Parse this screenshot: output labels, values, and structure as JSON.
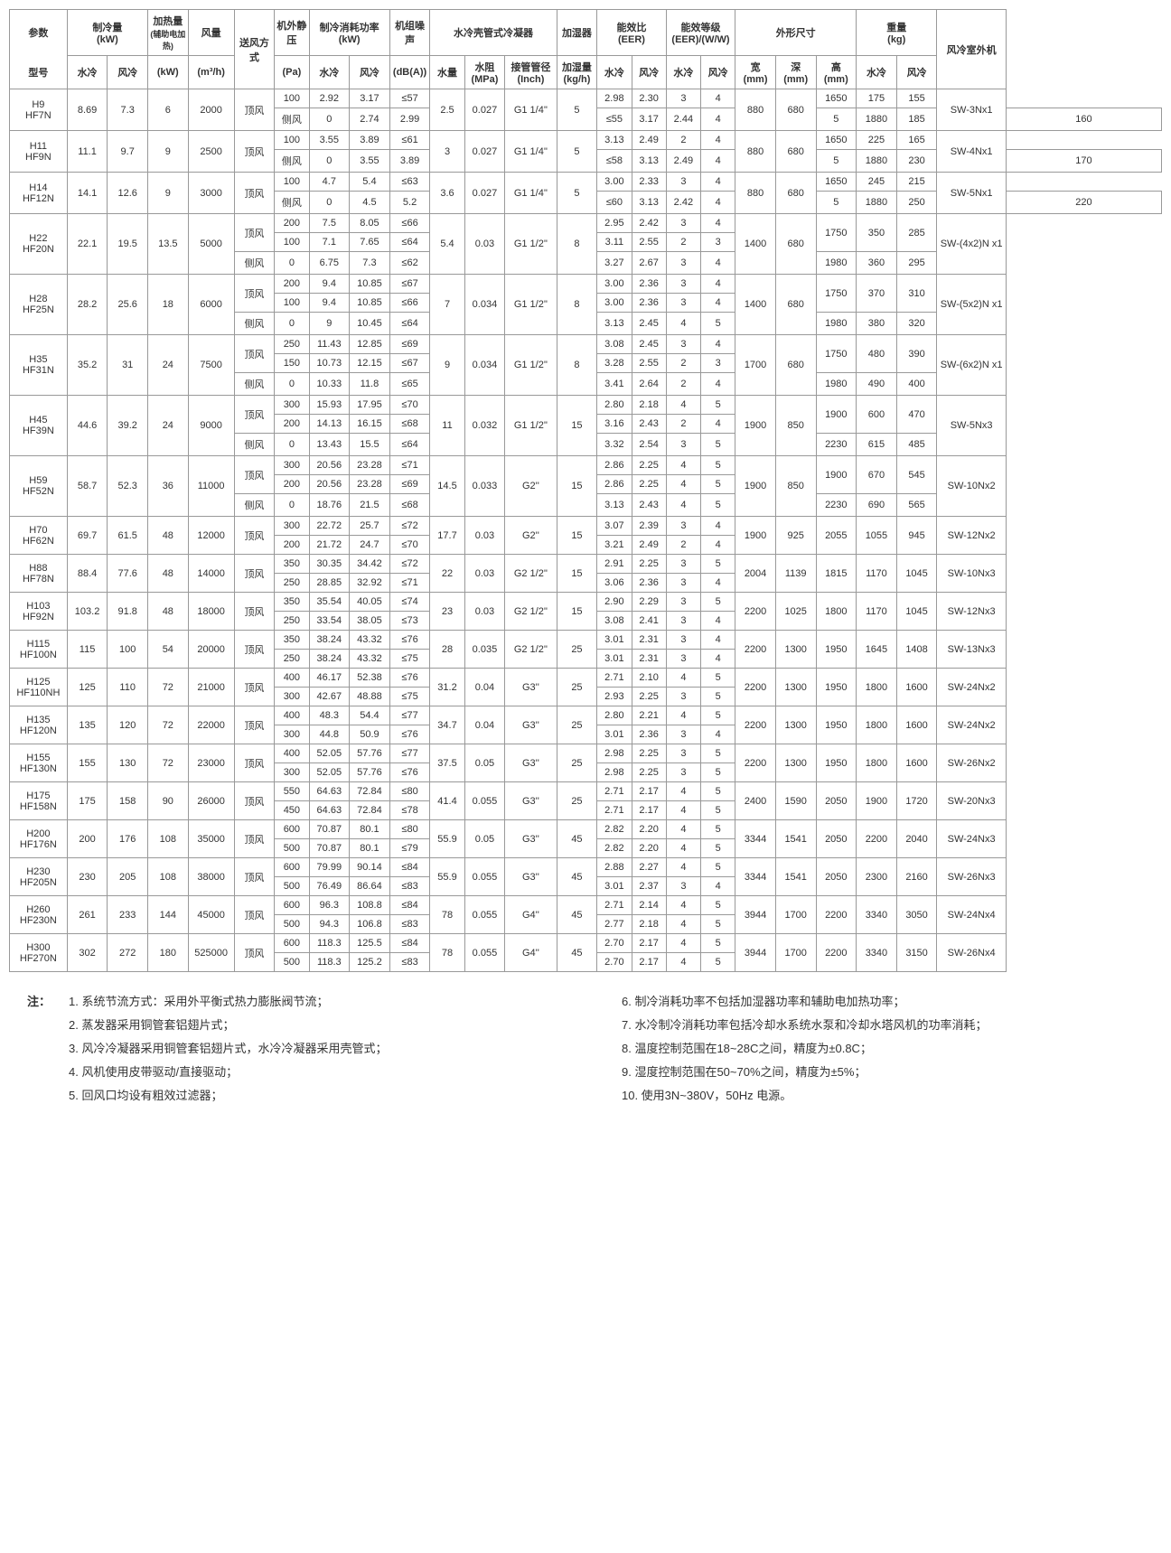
{
  "headers": {
    "param": "参数",
    "model": "型号",
    "cool_cap": "制冷量",
    "cool_unit": "(kW)",
    "heat_cap": "加热量",
    "heat_sub": "(辅助电加热)",
    "heat_unit": "(kW)",
    "airflow": "风量",
    "airflow_unit": "(m³/h)",
    "supply": "送风方式",
    "esp": "机外静压",
    "esp_unit": "(Pa)",
    "power": "制冷消耗功率",
    "power_unit": "(kW)",
    "noise": "机组噪声",
    "noise_unit": "(dB(A))",
    "condenser": "水冷壳管式冷凝器",
    "humid": "加湿器",
    "eer": "能效比",
    "eer_sub": "(EER)",
    "eer_grade": "能效等级",
    "eer_grade_sub": "(EER)/(W/W)",
    "dims": "外形尺寸",
    "weight": "重量",
    "weight_unit": "(kg)",
    "outdoor": "风冷室外机",
    "wc": "水冷",
    "ac": "风冷",
    "water_flow": "水量",
    "pressure": "水阻",
    "pressure_u": "(MPa)",
    "pipe": "接管管径",
    "pipe_u": "(Inch)",
    "humid_rate": "加湿量",
    "humid_u": "(kg/h)",
    "w": "宽",
    "d": "深",
    "h": "高",
    "mm": "(mm)"
  },
  "supplyModes": {
    "top": "顶风",
    "side": "侧风"
  },
  "rows": [
    {
      "model": "H9\nHF7N",
      "cw": "8.69",
      "ca": "7.3",
      "heat": "6",
      "af": "2000",
      "sub": [
        {
          "s": "top",
          "esp": "100",
          "pw": "2.92",
          "pa": "3.17",
          "n": "≤57",
          "ew": "2.98",
          "ea": "2.30",
          "gw": "3",
          "ga": "4",
          "ht": "1650",
          "ww": "175",
          "wa": "155"
        },
        {
          "s": "side",
          "esp": "0",
          "pw": "2.74",
          "pa": "2.99",
          "n": "≤55",
          "ew": "3.17",
          "ea": "2.44",
          "gw": "4",
          "ga": "5",
          "ht": "1880",
          "ww": "185",
          "wa": "160"
        }
      ],
      "wf": "2.5",
      "wp": "0.027",
      "pipe": "G1 1/4''",
      "hr": "5",
      "dw": "880",
      "dd": "680",
      "od": "SW-3Nx1"
    },
    {
      "model": "H11\nHF9N",
      "cw": "11.1",
      "ca": "9.7",
      "heat": "9",
      "af": "2500",
      "sub": [
        {
          "s": "top",
          "esp": "100",
          "pw": "3.55",
          "pa": "3.89",
          "n": "≤61",
          "ew": "3.13",
          "ea": "2.49",
          "gw": "2",
          "ga": "4",
          "ht": "1650",
          "ww": "225",
          "wa": "165"
        },
        {
          "s": "side",
          "esp": "0",
          "pw": "3.55",
          "pa": "3.89",
          "n": "≤58",
          "ew": "3.13",
          "ea": "2.49",
          "gw": "4",
          "ga": "5",
          "ht": "1880",
          "ww": "230",
          "wa": "170"
        }
      ],
      "wf": "3",
      "wp": "0.027",
      "pipe": "G1 1/4''",
      "hr": "5",
      "dw": "880",
      "dd": "680",
      "od": "SW-4Nx1"
    },
    {
      "model": "H14\nHF12N",
      "cw": "14.1",
      "ca": "12.6",
      "heat": "9",
      "af": "3000",
      "sub": [
        {
          "s": "top",
          "esp": "100",
          "pw": "4.7",
          "pa": "5.4",
          "n": "≤63",
          "ew": "3.00",
          "ea": "2.33",
          "gw": "3",
          "ga": "4",
          "ht": "1650",
          "ww": "245",
          "wa": "215"
        },
        {
          "s": "side",
          "esp": "0",
          "pw": "4.5",
          "pa": "5.2",
          "n": "≤60",
          "ew": "3.13",
          "ea": "2.42",
          "gw": "4",
          "ga": "5",
          "ht": "1880",
          "ww": "250",
          "wa": "220"
        }
      ],
      "wf": "3.6",
      "wp": "0.027",
      "pipe": "G1 1/4''",
      "hr": "5",
      "dw": "880",
      "dd": "680",
      "od": "SW-5Nx1"
    },
    {
      "model": "H22\nHF20N",
      "cw": "22.1",
      "ca": "19.5",
      "heat": "13.5",
      "af": "5000",
      "sub": [
        {
          "s": "top",
          "esp": "200",
          "pw": "7.5",
          "pa": "8.05",
          "n": "≤66",
          "ew": "2.95",
          "ea": "2.42",
          "gw": "3",
          "ga": "4",
          "ht": "1750",
          "ww": "350",
          "wa": "285"
        },
        {
          "s": "top2",
          "esp": "100",
          "pw": "7.1",
          "pa": "7.65",
          "n": "≤64",
          "ew": "3.11",
          "ea": "2.55",
          "gw": "2",
          "ga": "3"
        },
        {
          "s": "side",
          "esp": "0",
          "pw": "6.75",
          "pa": "7.3",
          "n": "≤62",
          "ew": "3.27",
          "ea": "2.67",
          "gw": "3",
          "ga": "4",
          "ht": "1980",
          "ww": "360",
          "wa": "295"
        }
      ],
      "wf": "5.4",
      "wp": "0.03",
      "pipe": "G1 1/2''",
      "hr": "8",
      "dw": "1400",
      "dd": "680",
      "od": "SW-(4x2)N x1",
      "topSpan": 2
    },
    {
      "model": "H28\nHF25N",
      "cw": "28.2",
      "ca": "25.6",
      "heat": "18",
      "af": "6000",
      "sub": [
        {
          "s": "top",
          "esp": "200",
          "pw": "9.4",
          "pa": "10.85",
          "n": "≤67",
          "ew": "3.00",
          "ea": "2.36",
          "gw": "3",
          "ga": "4",
          "ht": "1750",
          "ww": "370",
          "wa": "310"
        },
        {
          "s": "top2",
          "esp": "100",
          "pw": "9.4",
          "pa": "10.85",
          "n": "≤66",
          "ew": "3.00",
          "ea": "2.36",
          "gw": "3",
          "ga": "4"
        },
        {
          "s": "side",
          "esp": "0",
          "pw": "9",
          "pa": "10.45",
          "n": "≤64",
          "ew": "3.13",
          "ea": "2.45",
          "gw": "4",
          "ga": "5",
          "ht": "1980",
          "ww": "380",
          "wa": "320"
        }
      ],
      "wf": "7",
      "wp": "0.034",
      "pipe": "G1 1/2''",
      "hr": "8",
      "dw": "1400",
      "dd": "680",
      "od": "SW-(5x2)N x1",
      "topSpan": 2
    },
    {
      "model": "H35\nHF31N",
      "cw": "35.2",
      "ca": "31",
      "heat": "24",
      "af": "7500",
      "sub": [
        {
          "s": "top",
          "esp": "250",
          "pw": "11.43",
          "pa": "12.85",
          "n": "≤69",
          "ew": "3.08",
          "ea": "2.45",
          "gw": "3",
          "ga": "4",
          "ht": "1750",
          "ww": "480",
          "wa": "390"
        },
        {
          "s": "top2",
          "esp": "150",
          "pw": "10.73",
          "pa": "12.15",
          "n": "≤67",
          "ew": "3.28",
          "ea": "2.55",
          "gw": "2",
          "ga": "3"
        },
        {
          "s": "side",
          "esp": "0",
          "pw": "10.33",
          "pa": "11.8",
          "n": "≤65",
          "ew": "3.41",
          "ea": "2.64",
          "gw": "2",
          "ga": "4",
          "ht": "1980",
          "ww": "490",
          "wa": "400"
        }
      ],
      "wf": "9",
      "wp": "0.034",
      "pipe": "G1 1/2''",
      "hr": "8",
      "dw": "1700",
      "dd": "680",
      "od": "SW-(6x2)N x1",
      "topSpan": 2
    },
    {
      "model": "H45\nHF39N",
      "cw": "44.6",
      "ca": "39.2",
      "heat": "24",
      "af": "9000",
      "sub": [
        {
          "s": "top",
          "esp": "300",
          "pw": "15.93",
          "pa": "17.95",
          "n": "≤70",
          "ew": "2.80",
          "ea": "2.18",
          "gw": "4",
          "ga": "5",
          "ht": "1900",
          "ww": "600",
          "wa": "470"
        },
        {
          "s": "top2",
          "esp": "200",
          "pw": "14.13",
          "pa": "16.15",
          "n": "≤68",
          "ew": "3.16",
          "ea": "2.43",
          "gw": "2",
          "ga": "4"
        },
        {
          "s": "side",
          "esp": "0",
          "pw": "13.43",
          "pa": "15.5",
          "n": "≤64",
          "ew": "3.32",
          "ea": "2.54",
          "gw": "3",
          "ga": "5",
          "ht": "2230",
          "ww": "615",
          "wa": "485"
        }
      ],
      "wf": "11",
      "wp": "0.032",
      "pipe": "G1 1/2''",
      "hr": "15",
      "dw": "1900",
      "dd": "850",
      "od": "SW-5Nx3",
      "topSpan": 2
    },
    {
      "model": "H59\nHF52N",
      "cw": "58.7",
      "ca": "52.3",
      "heat": "36",
      "af": "11000",
      "sub": [
        {
          "s": "top",
          "esp": "300",
          "pw": "20.56",
          "pa": "23.28",
          "n": "≤71",
          "ew": "2.86",
          "ea": "2.25",
          "gw": "4",
          "ga": "5",
          "ht": "1900",
          "ww": "670",
          "wa": "545"
        },
        {
          "s": "top2",
          "esp": "200",
          "pw": "20.56",
          "pa": "23.28",
          "n": "≤69",
          "ew": "2.86",
          "ea": "2.25",
          "gw": "4",
          "ga": "5"
        },
        {
          "s": "side",
          "esp": "0",
          "pw": "18.76",
          "pa": "21.5",
          "n": "≤68",
          "ew": "3.13",
          "ea": "2.43",
          "gw": "4",
          "ga": "5",
          "ht": "2230",
          "ww": "690",
          "wa": "565"
        }
      ],
      "wf": "14.5",
      "wp": "0.033",
      "pipe": "G2''",
      "hr": "15",
      "dw": "1900",
      "dd": "850",
      "od": "SW-10Nx2",
      "topSpan": 2
    },
    {
      "model": "H70\nHF62N",
      "cw": "69.7",
      "ca": "61.5",
      "heat": "48",
      "af": "12000",
      "sub": [
        {
          "s": "top",
          "esp": "300",
          "pw": "22.72",
          "pa": "25.7",
          "n": "≤72",
          "ew": "3.07",
          "ea": "2.39",
          "gw": "3",
          "ga": "4",
          "ht": "2055",
          "ww": "1055",
          "wa": "945"
        },
        {
          "s": "top",
          "esp": "200",
          "pw": "21.72",
          "pa": "24.7",
          "n": "≤70",
          "ew": "3.21",
          "ea": "2.49",
          "gw": "2",
          "ga": "4"
        }
      ],
      "wf": "17.7",
      "wp": "0.03",
      "pipe": "G2''",
      "hr": "15",
      "dw": "1900",
      "dd": "925",
      "od": "SW-12Nx2",
      "htSpan": 2,
      "wtSpan": 2
    },
    {
      "model": "H88\nHF78N",
      "cw": "88.4",
      "ca": "77.6",
      "heat": "48",
      "af": "14000",
      "sub": [
        {
          "s": "top",
          "esp": "350",
          "pw": "30.35",
          "pa": "34.42",
          "n": "≤72",
          "ew": "2.91",
          "ea": "2.25",
          "gw": "3",
          "ga": "5",
          "ht": "1815",
          "ww": "1170",
          "wa": "1045"
        },
        {
          "s": "top",
          "esp": "250",
          "pw": "28.85",
          "pa": "32.92",
          "n": "≤71",
          "ew": "3.06",
          "ea": "2.36",
          "gw": "3",
          "ga": "4"
        }
      ],
      "wf": "22",
      "wp": "0.03",
      "pipe": "G2 1/2''",
      "hr": "15",
      "dw": "2004",
      "dd": "1139",
      "od": "SW-10Nx3",
      "htSpan": 2,
      "wtSpan": 2
    },
    {
      "model": "H103\nHF92N",
      "cw": "103.2",
      "ca": "91.8",
      "heat": "48",
      "af": "18000",
      "sub": [
        {
          "s": "top",
          "esp": "350",
          "pw": "35.54",
          "pa": "40.05",
          "n": "≤74",
          "ew": "2.90",
          "ea": "2.29",
          "gw": "3",
          "ga": "5",
          "ht": "1800",
          "ww": "1170",
          "wa": "1045"
        },
        {
          "s": "top",
          "esp": "250",
          "pw": "33.54",
          "pa": "38.05",
          "n": "≤73",
          "ew": "3.08",
          "ea": "2.41",
          "gw": "3",
          "ga": "4"
        }
      ],
      "wf": "23",
      "wp": "0.03",
      "pipe": "G2 1/2''",
      "hr": "15",
      "dw": "2200",
      "dd": "1025",
      "od": "SW-12Nx3",
      "htSpan": 2,
      "wtSpan": 2
    },
    {
      "model": "H115\nHF100N",
      "cw": "115",
      "ca": "100",
      "heat": "54",
      "af": "20000",
      "sub": [
        {
          "s": "top",
          "esp": "350",
          "pw": "38.24",
          "pa": "43.32",
          "n": "≤76",
          "ew": "3.01",
          "ea": "2.31",
          "gw": "3",
          "ga": "4",
          "ht": "1950",
          "ww": "1645",
          "wa": "1408"
        },
        {
          "s": "top",
          "esp": "250",
          "pw": "38.24",
          "pa": "43.32",
          "n": "≤75",
          "ew": "3.01",
          "ea": "2.31",
          "gw": "3",
          "ga": "4"
        }
      ],
      "wf": "28",
      "wp": "0.035",
      "pipe": "G2 1/2''",
      "hr": "25",
      "dw": "2200",
      "dd": "1300",
      "od": "SW-13Nx3",
      "htSpan": 2,
      "wtSpan": 2
    },
    {
      "model": "H125\nHF110NH",
      "cw": "125",
      "ca": "110",
      "heat": "72",
      "af": "21000",
      "sub": [
        {
          "s": "top",
          "esp": "400",
          "pw": "46.17",
          "pa": "52.38",
          "n": "≤76",
          "ew": "2.71",
          "ea": "2.10",
          "gw": "4",
          "ga": "5",
          "ht": "1950",
          "ww": "1800",
          "wa": "1600"
        },
        {
          "s": "top",
          "esp": "300",
          "pw": "42.67",
          "pa": "48.88",
          "n": "≤75",
          "ew": "2.93",
          "ea": "2.25",
          "gw": "3",
          "ga": "5"
        }
      ],
      "wf": "31.2",
      "wp": "0.04",
      "pipe": "G3''",
      "hr": "25",
      "dw": "2200",
      "dd": "1300",
      "od": "SW-24Nx2",
      "htSpan": 2,
      "wtSpan": 2
    },
    {
      "model": "H135\nHF120N",
      "cw": "135",
      "ca": "120",
      "heat": "72",
      "af": "22000",
      "sub": [
        {
          "s": "top",
          "esp": "400",
          "pw": "48.3",
          "pa": "54.4",
          "n": "≤77",
          "ew": "2.80",
          "ea": "2.21",
          "gw": "4",
          "ga": "5",
          "ht": "1950",
          "ww": "1800",
          "wa": "1600"
        },
        {
          "s": "top",
          "esp": "300",
          "pw": "44.8",
          "pa": "50.9",
          "n": "≤76",
          "ew": "3.01",
          "ea": "2.36",
          "gw": "3",
          "ga": "4"
        }
      ],
      "wf": "34.7",
      "wp": "0.04",
      "pipe": "G3''",
      "hr": "25",
      "dw": "2200",
      "dd": "1300",
      "od": "SW-24Nx2",
      "htSpan": 2,
      "wtSpan": 2
    },
    {
      "model": "H155\nHF130N",
      "cw": "155",
      "ca": "130",
      "heat": "72",
      "af": "23000",
      "sub": [
        {
          "s": "top",
          "esp": "400",
          "pw": "52.05",
          "pa": "57.76",
          "n": "≤77",
          "ew": "2.98",
          "ea": "2.25",
          "gw": "3",
          "ga": "5",
          "ht": "1950",
          "ww": "1800",
          "wa": "1600"
        },
        {
          "s": "top",
          "esp": "300",
          "pw": "52.05",
          "pa": "57.76",
          "n": "≤76",
          "ew": "2.98",
          "ea": "2.25",
          "gw": "3",
          "ga": "5"
        }
      ],
      "wf": "37.5",
      "wp": "0.05",
      "pipe": "G3''",
      "hr": "25",
      "dw": "2200",
      "dd": "1300",
      "od": "SW-26Nx2",
      "htSpan": 2,
      "wtSpan": 2
    },
    {
      "model": "H175\nHF158N",
      "cw": "175",
      "ca": "158",
      "heat": "90",
      "af": "26000",
      "sub": [
        {
          "s": "top",
          "esp": "550",
          "pw": "64.63",
          "pa": "72.84",
          "n": "≤80",
          "ew": "2.71",
          "ea": "2.17",
          "gw": "4",
          "ga": "5",
          "ht": "2050",
          "ww": "1900",
          "wa": "1720"
        },
        {
          "s": "top",
          "esp": "450",
          "pw": "64.63",
          "pa": "72.84",
          "n": "≤78",
          "ew": "2.71",
          "ea": "2.17",
          "gw": "4",
          "ga": "5"
        }
      ],
      "wf": "41.4",
      "wp": "0.055",
      "pipe": "G3''",
      "hr": "25",
      "dw": "2400",
      "dd": "1590",
      "od": "SW-20Nx3",
      "htSpan": 2,
      "wtSpan": 2
    },
    {
      "model": "H200\nHF176N",
      "cw": "200",
      "ca": "176",
      "heat": "108",
      "af": "35000",
      "sub": [
        {
          "s": "top",
          "esp": "600",
          "pw": "70.87",
          "pa": "80.1",
          "n": "≤80",
          "ew": "2.82",
          "ea": "2.20",
          "gw": "4",
          "ga": "5",
          "ht": "2050",
          "ww": "2200",
          "wa": "2040"
        },
        {
          "s": "top",
          "esp": "500",
          "pw": "70.87",
          "pa": "80.1",
          "n": "≤79",
          "ew": "2.82",
          "ea": "2.20",
          "gw": "4",
          "ga": "5"
        }
      ],
      "wf": "55.9",
      "wp": "0.05",
      "pipe": "G3''",
      "hr": "45",
      "dw": "3344",
      "dd": "1541",
      "od": "SW-24Nx3",
      "htSpan": 2,
      "wtSpan": 2
    },
    {
      "model": "H230\nHF205N",
      "cw": "230",
      "ca": "205",
      "heat": "108",
      "af": "38000",
      "sub": [
        {
          "s": "top",
          "esp": "600",
          "pw": "79.99",
          "pa": "90.14",
          "n": "≤84",
          "ew": "2.88",
          "ea": "2.27",
          "gw": "4",
          "ga": "5",
          "ht": "2050",
          "ww": "2300",
          "wa": "2160"
        },
        {
          "s": "top",
          "esp": "500",
          "pw": "76.49",
          "pa": "86.64",
          "n": "≤83",
          "ew": "3.01",
          "ea": "2.37",
          "gw": "3",
          "ga": "4"
        }
      ],
      "wf": "55.9",
      "wp": "0.055",
      "pipe": "G3''",
      "hr": "45",
      "dw": "3344",
      "dd": "1541",
      "od": "SW-26Nx3",
      "htSpan": 2,
      "wtSpan": 2
    },
    {
      "model": "H260\nHF230N",
      "cw": "261",
      "ca": "233",
      "heat": "144",
      "af": "45000",
      "sub": [
        {
          "s": "top",
          "esp": "600",
          "pw": "96.3",
          "pa": "108.8",
          "n": "≤84",
          "ew": "2.71",
          "ea": "2.14",
          "gw": "4",
          "ga": "5",
          "ht": "2200",
          "ww": "3340",
          "wa": "3050"
        },
        {
          "s": "top",
          "esp": "500",
          "pw": "94.3",
          "pa": "106.8",
          "n": "≤83",
          "ew": "2.77",
          "ea": "2.18",
          "gw": "4",
          "ga": "5"
        }
      ],
      "wf": "78",
      "wp": "0.055",
      "pipe": "G4''",
      "hr": "45",
      "dw": "3944",
      "dd": "1700",
      "od": "SW-24Nx4",
      "htSpan": 2,
      "wtSpan": 2
    },
    {
      "model": "H300\nHF270N",
      "cw": "302",
      "ca": "272",
      "heat": "180",
      "af": "525000",
      "sub": [
        {
          "s": "top",
          "esp": "600",
          "pw": "118.3",
          "pa": "125.5",
          "n": "≤84",
          "ew": "2.70",
          "ea": "2.17",
          "gw": "4",
          "ga": "5",
          "ht": "2200",
          "ww": "3340",
          "wa": "3150"
        },
        {
          "s": "top",
          "esp": "500",
          "pw": "118.3",
          "pa": "125.2",
          "n": "≤83",
          "ew": "2.70",
          "ea": "2.17",
          "gw": "4",
          "ga": "5"
        }
      ],
      "wf": "78",
      "wp": "0.055",
      "pipe": "G4''",
      "hr": "45",
      "dw": "3944",
      "dd": "1700",
      "od": "SW-26Nx4",
      "htSpan": 2,
      "wtSpan": 2
    }
  ],
  "notes": {
    "label": "注：",
    "left": [
      "1. 系统节流方式：采用外平衡式热力膨胀阀节流；",
      "2. 蒸发器采用铜管套铝翅片式；",
      "3. 风冷冷凝器采用铜管套铝翅片式，水冷冷凝器采用壳管式；",
      "4. 风机使用皮带驱动/直接驱动；",
      "5. 回风口均设有粗效过滤器；"
    ],
    "right": [
      "6. 制冷消耗功率不包括加湿器功率和辅助电加热功率；",
      "7. 水冷制冷消耗功率包括冷却水系统水泵和冷却水塔风机的功率消耗；",
      "8. 温度控制范围在18~28C之间，精度为±0.8C；",
      "9. 湿度控制范围在50~70%之间，精度为±5%；",
      "10. 使用3N~380V，50Hz 电源。"
    ]
  }
}
